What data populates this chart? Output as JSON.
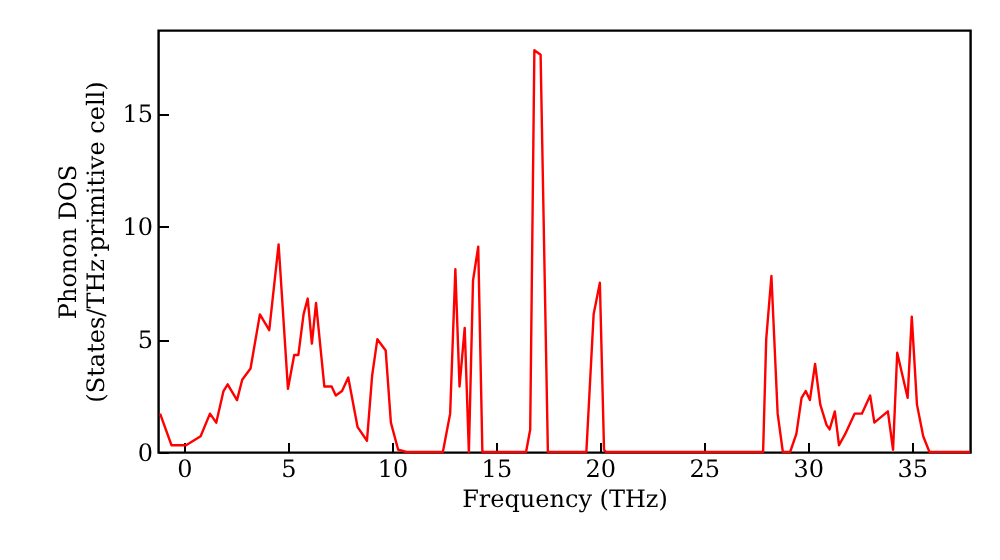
{
  "chart_data": {
    "type": "line",
    "xlabel": "Frequency (THz)",
    "ylabel": "Phonon DOS\n(States/THz·primitive cell)",
    "xlim": [
      -1.25,
      37.8
    ],
    "ylim": [
      0,
      18.7
    ],
    "xticks": [
      0,
      5,
      10,
      15,
      20,
      25,
      30,
      35
    ],
    "yticks": [
      0,
      5,
      10,
      15
    ],
    "grid": false,
    "marker": "none",
    "line_style": "solid",
    "series": [
      {
        "color": "#ff0000",
        "x": [
          -1.15,
          -0.6,
          0.1,
          0.8,
          1.25,
          1.55,
          1.9,
          2.1,
          2.55,
          2.8,
          3.2,
          3.65,
          4.1,
          4.55,
          5.0,
          5.3,
          5.5,
          5.75,
          5.95,
          6.15,
          6.35,
          6.75,
          7.1,
          7.3,
          7.6,
          7.9,
          8.35,
          8.8,
          9.05,
          9.3,
          9.7,
          9.95,
          10.3,
          10.7,
          12.45,
          12.8,
          13.05,
          13.25,
          13.5,
          13.7,
          13.9,
          14.15,
          14.35,
          16.45,
          16.65,
          16.85,
          17.15,
          17.5,
          19.35,
          19.7,
          20.0,
          20.2,
          20.3,
          27.85,
          28.0,
          28.25,
          28.55,
          28.8,
          29.15,
          29.45,
          29.7,
          29.9,
          30.1,
          30.35,
          30.6,
          30.9,
          31.05,
          31.3,
          31.5,
          31.8,
          32.25,
          32.6,
          33.0,
          33.2,
          33.85,
          34.1,
          34.3,
          34.8,
          35.0,
          35.25,
          35.55,
          35.85,
          37.8
        ],
        "values": [
          1.7,
          0.3,
          0.3,
          0.7,
          1.7,
          1.3,
          2.7,
          3.0,
          2.3,
          3.2,
          3.7,
          6.1,
          5.4,
          9.2,
          2.8,
          4.3,
          4.3,
          6.1,
          6.8,
          4.8,
          6.6,
          2.9,
          2.9,
          2.5,
          2.7,
          3.3,
          1.1,
          0.5,
          3.4,
          5.0,
          4.5,
          1.3,
          0.1,
          0,
          0,
          1.7,
          8.1,
          2.9,
          5.5,
          0,
          7.6,
          9.1,
          0,
          0,
          1.0,
          17.8,
          17.6,
          0,
          0,
          6.1,
          7.5,
          0.1,
          0,
          0,
          5.0,
          7.8,
          1.7,
          0,
          0,
          0.8,
          2.4,
          2.7,
          2.3,
          3.9,
          2.1,
          1.2,
          1.0,
          1.8,
          0.3,
          0.8,
          1.7,
          1.7,
          2.5,
          1.3,
          1.8,
          0.1,
          4.4,
          2.4,
          6.0,
          2.1,
          0.7,
          0,
          0
        ]
      }
    ]
  }
}
